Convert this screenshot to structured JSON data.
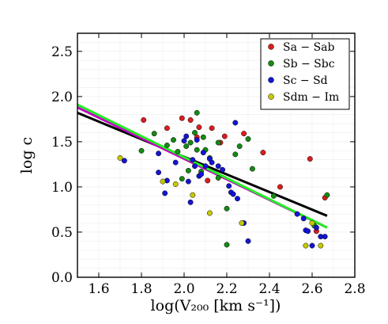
{
  "chart_data": {
    "type": "scatter",
    "xlabel": "log(V₂₀₀ [km s⁻¹])",
    "ylabel": "log c",
    "xlim": [
      1.5,
      2.8
    ],
    "ylim": [
      0.0,
      2.7
    ],
    "xticks": [
      "1.6",
      "1.8",
      "2.0",
      "2.2",
      "2.4",
      "2.6",
      "2.8"
    ],
    "yticks": [
      "0.0",
      "0.5",
      "1.0",
      "1.5",
      "2.0",
      "2.5"
    ],
    "grid": true,
    "legend_position": "top-right",
    "series": [
      {
        "name": "Sa − Sab",
        "color": "#dd1c1c",
        "points": [
          [
            1.81,
            1.74
          ],
          [
            1.92,
            1.65
          ],
          [
            1.99,
            1.76
          ],
          [
            2.03,
            1.74
          ],
          [
            2.06,
            1.55
          ],
          [
            2.07,
            1.66
          ],
          [
            2.11,
            1.07
          ],
          [
            2.13,
            1.65
          ],
          [
            2.17,
            1.49
          ],
          [
            2.19,
            1.56
          ],
          [
            2.28,
            1.59
          ],
          [
            2.37,
            1.38
          ],
          [
            2.45,
            1.0
          ],
          [
            2.59,
            1.31
          ],
          [
            2.62,
            0.51
          ],
          [
            2.66,
            0.88
          ]
        ]
      },
      {
        "name": "Sb − Sbc",
        "color": "#138a13",
        "points": [
          [
            1.8,
            1.4
          ],
          [
            1.86,
            1.59
          ],
          [
            1.92,
            1.46
          ],
          [
            1.95,
            1.52
          ],
          [
            1.97,
            1.39
          ],
          [
            1.99,
            1.09
          ],
          [
            2.01,
            1.45
          ],
          [
            2.02,
            1.18
          ],
          [
            2.03,
            1.49
          ],
          [
            2.05,
            1.6
          ],
          [
            2.06,
            1.41
          ],
          [
            2.06,
            1.82
          ],
          [
            2.08,
            1.17
          ],
          [
            2.09,
            1.55
          ],
          [
            2.1,
            1.41
          ],
          [
            2.12,
            1.32
          ],
          [
            2.16,
            1.49
          ],
          [
            2.16,
            1.1
          ],
          [
            2.2,
            0.76
          ],
          [
            2.2,
            0.36
          ],
          [
            2.24,
            1.36
          ],
          [
            2.26,
            1.45
          ],
          [
            2.3,
            1.53
          ],
          [
            2.32,
            1.2
          ],
          [
            2.42,
            0.9
          ],
          [
            2.61,
            0.57
          ],
          [
            2.67,
            0.91
          ]
        ]
      },
      {
        "name": "Sc − Sd",
        "color": "#1414d6",
        "points": [
          [
            1.72,
            1.29
          ],
          [
            1.88,
            1.37
          ],
          [
            1.88,
            1.16
          ],
          [
            1.91,
            0.93
          ],
          [
            1.92,
            1.07
          ],
          [
            1.96,
            1.27
          ],
          [
            2.0,
            1.51
          ],
          [
            2.01,
            1.56
          ],
          [
            2.02,
            1.06
          ],
          [
            2.03,
            0.83
          ],
          [
            2.04,
            1.3
          ],
          [
            2.05,
            1.23
          ],
          [
            2.06,
            1.52
          ],
          [
            2.07,
            1.12
          ],
          [
            2.08,
            1.14
          ],
          [
            2.09,
            1.38
          ],
          [
            2.1,
            1.23
          ],
          [
            2.12,
            1.31
          ],
          [
            2.13,
            1.27
          ],
          [
            2.16,
            1.23
          ],
          [
            2.18,
            1.19
          ],
          [
            2.21,
            1.01
          ],
          [
            2.22,
            0.94
          ],
          [
            2.23,
            0.92
          ],
          [
            2.24,
            1.71
          ],
          [
            2.25,
            0.87
          ],
          [
            2.28,
            0.6
          ],
          [
            2.3,
            0.4
          ],
          [
            2.53,
            0.7
          ],
          [
            2.56,
            0.65
          ],
          [
            2.57,
            0.52
          ],
          [
            2.58,
            0.51
          ],
          [
            2.6,
            0.35
          ],
          [
            2.62,
            0.55
          ],
          [
            2.64,
            0.45
          ],
          [
            2.66,
            0.45
          ]
        ]
      },
      {
        "name": "Sdm − Im",
        "color": "#c8c800",
        "points": [
          [
            1.7,
            1.32
          ],
          [
            1.9,
            1.06
          ],
          [
            1.96,
            1.03
          ],
          [
            2.04,
            0.91
          ],
          [
            2.12,
            0.71
          ],
          [
            2.27,
            0.6
          ],
          [
            2.57,
            0.35
          ],
          [
            2.6,
            0.6
          ],
          [
            2.64,
            0.35
          ]
        ]
      }
    ],
    "fit_lines": [
      {
        "color": "#000000",
        "points": [
          [
            1.5,
            1.82
          ],
          [
            2.67,
            0.68
          ]
        ]
      },
      {
        "color": "#c000c0",
        "points": [
          [
            1.5,
            1.88
          ],
          [
            2.67,
            0.55
          ]
        ]
      },
      {
        "color": "#22ee22",
        "points": [
          [
            1.5,
            1.91
          ],
          [
            2.67,
            0.55
          ]
        ]
      }
    ]
  }
}
